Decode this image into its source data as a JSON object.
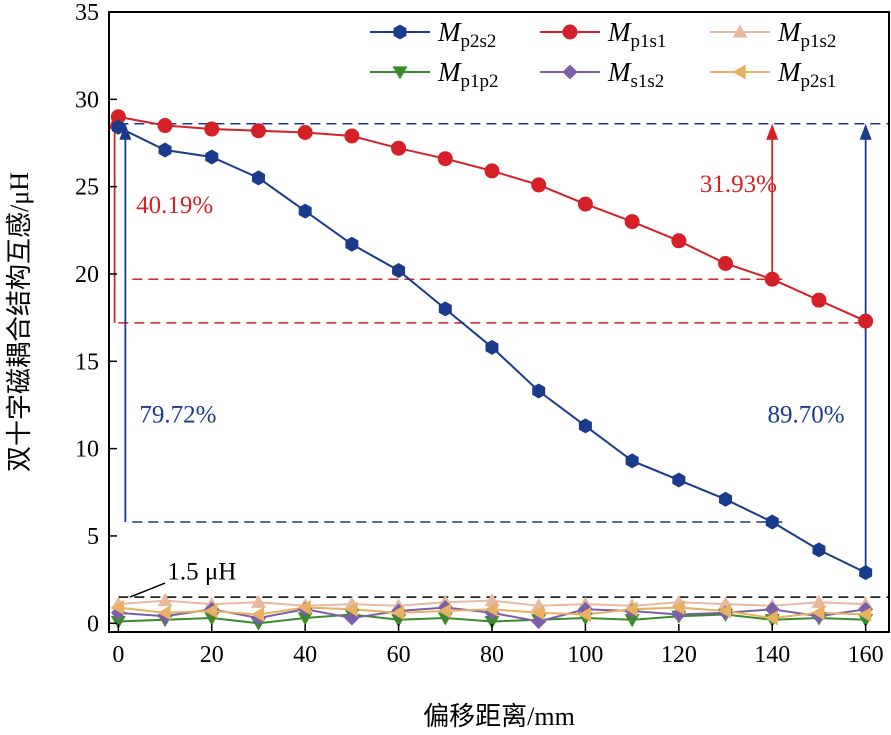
{
  "chart_data": {
    "type": "line",
    "xlabel": "偏移距离/mm",
    "ylabel": "双十字磁耦合结构互感/μH",
    "xlim": [
      -2,
      165
    ],
    "ylim": [
      -0.5,
      35
    ],
    "xticks": [
      0,
      20,
      40,
      60,
      80,
      100,
      120,
      140,
      160
    ],
    "yticks": [
      0,
      5,
      10,
      15,
      20,
      25,
      30,
      35
    ],
    "legend_position": "top-right",
    "x": [
      0,
      10,
      20,
      30,
      40,
      50,
      60,
      70,
      80,
      90,
      100,
      110,
      120,
      130,
      140,
      150,
      160
    ],
    "series": [
      {
        "key": "Mp2s2",
        "name": "Mp2s2",
        "symbol": "M",
        "subscript": "p2s2",
        "color": "#1a3a8c",
        "marker": "hexagon",
        "values": [
          28.4,
          27.1,
          26.7,
          25.5,
          23.6,
          21.7,
          20.2,
          18.0,
          15.8,
          13.3,
          11.3,
          9.3,
          8.2,
          7.1,
          5.8,
          4.2,
          2.9
        ]
      },
      {
        "key": "Mp1s1",
        "name": "Mp1s1",
        "symbol": "M",
        "subscript": "p1s1",
        "color": "#d42027",
        "marker": "circle",
        "values": [
          29.0,
          28.5,
          28.3,
          28.2,
          28.1,
          27.9,
          27.2,
          26.6,
          25.9,
          25.1,
          24.0,
          23.0,
          21.9,
          20.6,
          19.7,
          18.5,
          17.3
        ]
      },
      {
        "key": "Mp1s2",
        "name": "Mp1s2",
        "symbol": "M",
        "subscript": "p1s2",
        "color": "#e8b8a0",
        "marker": "triangle-up",
        "values": [
          1.1,
          1.3,
          1.1,
          1.2,
          1.0,
          1.1,
          1.0,
          1.2,
          1.3,
          1.0,
          1.1,
          1.0,
          1.2,
          1.1,
          1.0,
          1.2,
          1.1
        ]
      },
      {
        "key": "Mp1p2",
        "name": "Mp1p2",
        "symbol": "M",
        "subscript": "p1p2",
        "color": "#3a8c2a",
        "marker": "triangle-down",
        "values": [
          0.1,
          0.2,
          0.3,
          0.0,
          0.3,
          0.5,
          0.2,
          0.3,
          0.1,
          0.2,
          0.3,
          0.2,
          0.4,
          0.5,
          0.2,
          0.3,
          0.2
        ]
      },
      {
        "key": "Ms1s2",
        "name": "Ms1s2",
        "symbol": "M",
        "subscript": "s1s2",
        "color": "#7b5fa8",
        "marker": "diamond",
        "values": [
          0.6,
          0.4,
          0.8,
          0.3,
          0.8,
          0.3,
          0.7,
          0.9,
          0.6,
          0.1,
          0.8,
          0.7,
          0.5,
          0.6,
          0.8,
          0.4,
          0.8
        ]
      },
      {
        "key": "Mp2s1",
        "name": "Mp2s1",
        "symbol": "M",
        "subscript": "p2s1",
        "color": "#e8b060",
        "marker": "triangle-left",
        "values": [
          0.9,
          0.6,
          0.7,
          0.5,
          0.9,
          0.8,
          0.6,
          0.7,
          0.8,
          0.6,
          0.5,
          0.8,
          0.9,
          0.7,
          0.3,
          0.6,
          0.5
        ]
      }
    ],
    "annotations": [
      {
        "text": "40.19%",
        "color": "#d42027"
      },
      {
        "text": "31.93%",
        "color": "#d42027"
      },
      {
        "text": "79.72%",
        "color": "#1a3a8c"
      },
      {
        "text": "89.70%",
        "color": "#1a3a8c"
      },
      {
        "text": "1.5 μH",
        "color": "#000000"
      }
    ],
    "reference_lines": [
      {
        "y": 28.6,
        "color": "#1a3a8c"
      },
      {
        "y": 19.7,
        "color": "#d42027"
      },
      {
        "y": 17.2,
        "color": "#d42027"
      },
      {
        "y": 5.8,
        "color": "#1a3a8c"
      },
      {
        "y": 1.5,
        "color": "#000000"
      }
    ]
  }
}
